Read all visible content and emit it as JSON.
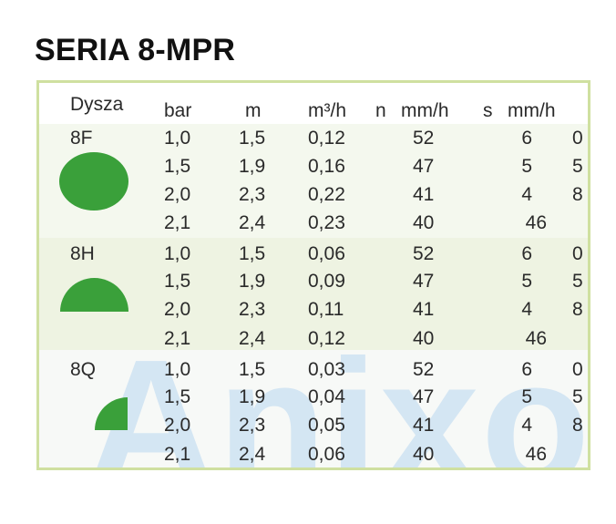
{
  "title": "SERIA 8-MPR",
  "watermark": "Anixol",
  "headers": {
    "nozzle": "Dysza",
    "bar": "bar",
    "m": "m",
    "flow": "m³/h",
    "n": "n",
    "rate_n": "mm/h",
    "s": "s",
    "rate_s": "mm/h"
  },
  "groups": [
    {
      "label": "8F",
      "shape": "full-circle",
      "rows": [
        {
          "bar": "1,0",
          "m": "1,5",
          "flow": "0,12",
          "n": "52",
          "s": "6",
          "last": "0"
        },
        {
          "bar": "1,5",
          "m": "1,9",
          "flow": "0,16",
          "n": "47",
          "s": "5",
          "last": "5"
        },
        {
          "bar": "2,0",
          "m": "2,3",
          "flow": "0,22",
          "n": "41",
          "s": "4",
          "last": "8"
        },
        {
          "bar": "2,1",
          "m": "2,4",
          "flow": "0,23",
          "n": "40",
          "s": "46",
          "last": ""
        }
      ]
    },
    {
      "label": "8H",
      "shape": "half-circle",
      "rows": [
        {
          "bar": "1,0",
          "m": "1,5",
          "flow": "0,06",
          "n": "52",
          "s": "6",
          "last": "0"
        },
        {
          "bar": "1,5",
          "m": "1,9",
          "flow": "0,09",
          "n": "47",
          "s": "5",
          "last": "5"
        },
        {
          "bar": "2,0",
          "m": "2,3",
          "flow": "0,11",
          "n": "41",
          "s": "4",
          "last": "8"
        },
        {
          "bar": "2,1",
          "m": "2,4",
          "flow": "0,12",
          "n": "40",
          "s": "46",
          "last": ""
        }
      ]
    },
    {
      "label": "8Q",
      "shape": "quarter-circle",
      "rows": [
        {
          "bar": "1,0",
          "m": "1,5",
          "flow": "0,03",
          "n": "52",
          "s": "6",
          "last": "0"
        },
        {
          "bar": "1,5",
          "m": "1,9",
          "flow": "0,04",
          "n": "47",
          "s": "5",
          "last": "5"
        },
        {
          "bar": "2,0",
          "m": "2,3",
          "flow": "0,05",
          "n": "41",
          "s": "4",
          "last": "8"
        },
        {
          "bar": "2,1",
          "m": "2,4",
          "flow": "0,06",
          "n": "40",
          "s": "46",
          "last": ""
        }
      ]
    }
  ],
  "colors": {
    "accent_green": "#3aa03a",
    "border": "#cfe0a0",
    "watermark": "#cfe3f3"
  }
}
